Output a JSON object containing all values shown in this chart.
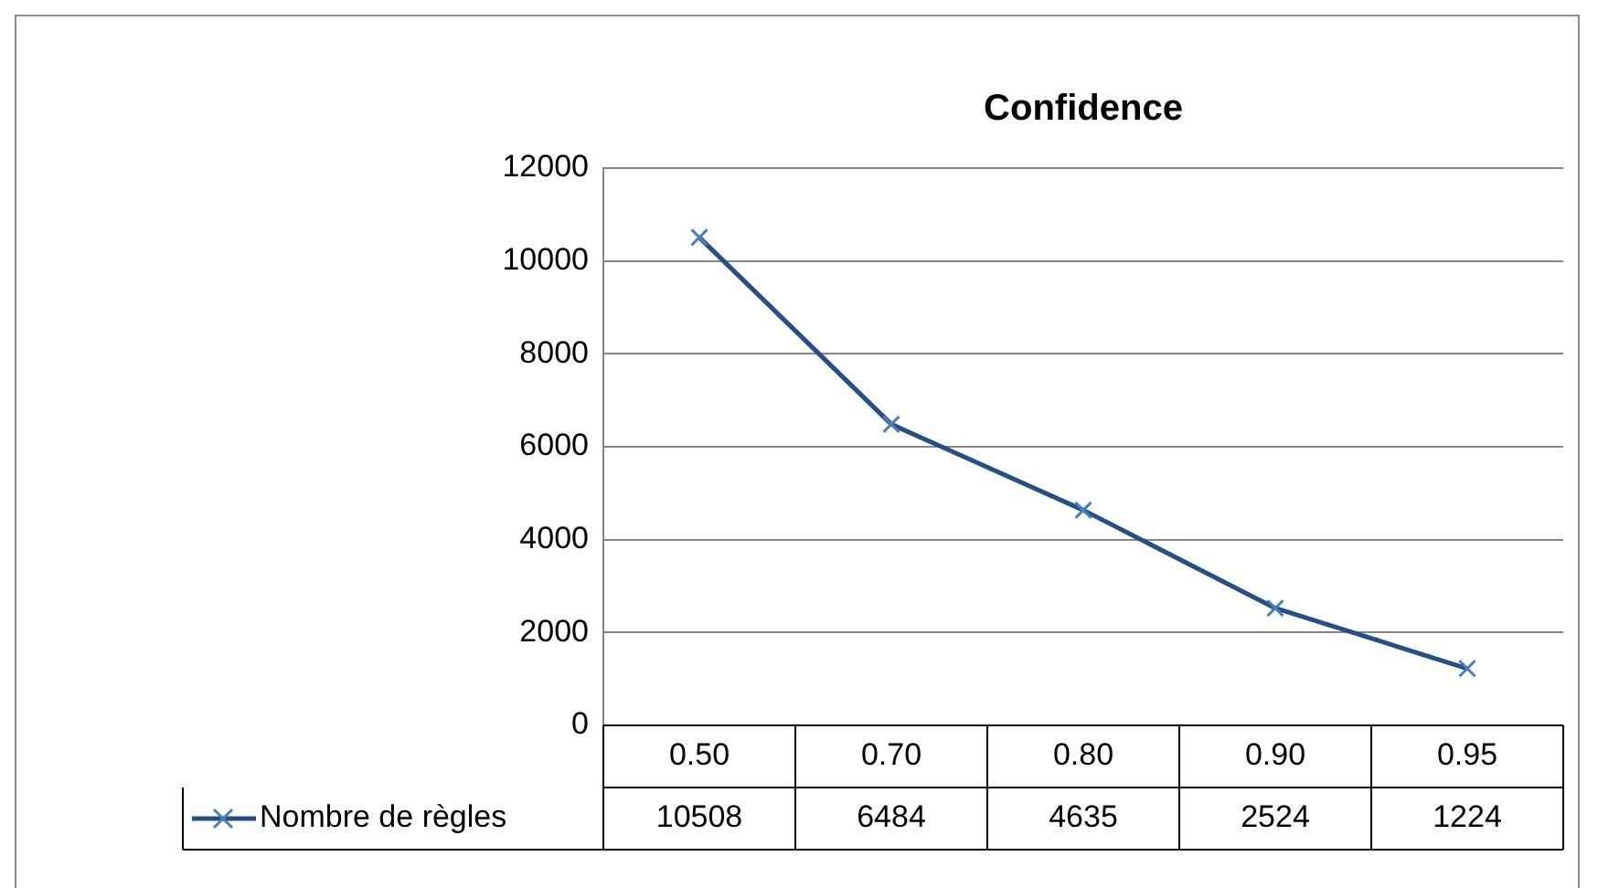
{
  "chart_data": {
    "type": "line",
    "title": "Confidence",
    "categories": [
      "0.50",
      "0.70",
      "0.80",
      "0.90",
      "0.95"
    ],
    "series": [
      {
        "name": "Nombre de règles",
        "color": "#264f87",
        "values": [
          10508,
          6484,
          4635,
          2524,
          1224
        ]
      }
    ],
    "ylim": [
      0,
      12000
    ],
    "yticks": [
      0,
      2000,
      4000,
      6000,
      8000,
      10000,
      12000
    ],
    "grid": "y",
    "legend": "bottom",
    "marker": "cross",
    "line_style": "solid",
    "data_labels": true
  }
}
